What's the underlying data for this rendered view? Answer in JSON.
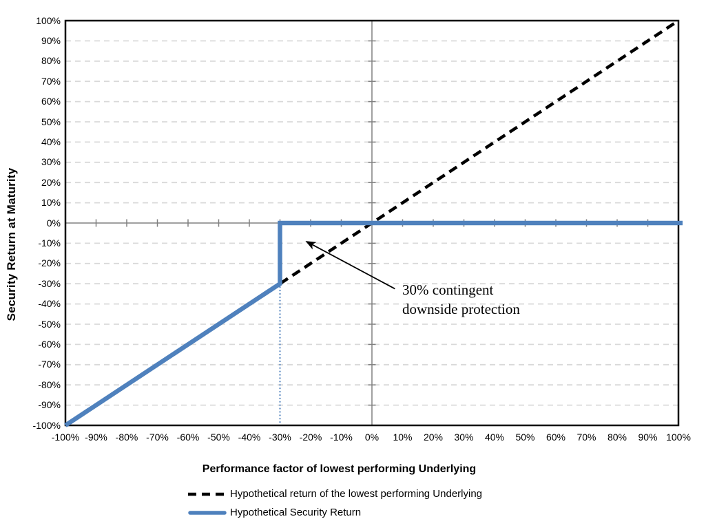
{
  "chart_data": {
    "type": "line",
    "title": "",
    "xlabel": "Performance factor of lowest performing Underlying",
    "ylabel": "Security Return at Maturity",
    "xlim": [
      -100,
      100
    ],
    "ylim": [
      -100,
      100
    ],
    "x_tick_step": 10,
    "y_tick_step": 10,
    "x_tick_labels": [
      "-100%",
      "-90%",
      "-80%",
      "-70%",
      "-60%",
      "-50%",
      "-40%",
      "-30%",
      "-20%",
      "-10%",
      "0%",
      "10%",
      "20%",
      "30%",
      "40%",
      "50%",
      "60%",
      "70%",
      "80%",
      "90%",
      "100%"
    ],
    "y_tick_labels": [
      "100%",
      "90%",
      "80%",
      "70%",
      "60%",
      "50%",
      "40%",
      "30%",
      "20%",
      "10%",
      "0%",
      "-10%",
      "-20%",
      "-30%",
      "-40%",
      "-50%",
      "-60%",
      "-70%",
      "-80%",
      "-90%",
      "-100%"
    ],
    "grid": "horizontal-dashed",
    "legend_position": "bottom-left",
    "series": [
      {
        "name": "Hypothetical return of the lowest performing Underlying",
        "style": "dashed",
        "color": "#000000",
        "points": [
          [
            -100,
            -100
          ],
          [
            100,
            100
          ]
        ]
      },
      {
        "name": "Hypothetical Security Return",
        "style": "solid",
        "color": "#4F81BD",
        "points": [
          [
            -100,
            -100
          ],
          [
            -30,
            -30
          ],
          [
            -30,
            0
          ],
          [
            100,
            0
          ]
        ]
      }
    ],
    "guide_line": {
      "style": "dotted",
      "color": "#4F81BD",
      "points": [
        [
          -30,
          -30
        ],
        [
          -30,
          -100
        ]
      ]
    },
    "annotation": {
      "line1": "30% contingent",
      "line2": "downside protection",
      "arrow_from": [
        7.5,
        -32.5
      ],
      "arrow_to": [
        -21.3,
        -9.2
      ]
    },
    "colors": {
      "series_blue": "#4F81BD",
      "axis_gray": "#808080",
      "gridline": "#D9D9D9",
      "border": "#000000"
    }
  }
}
